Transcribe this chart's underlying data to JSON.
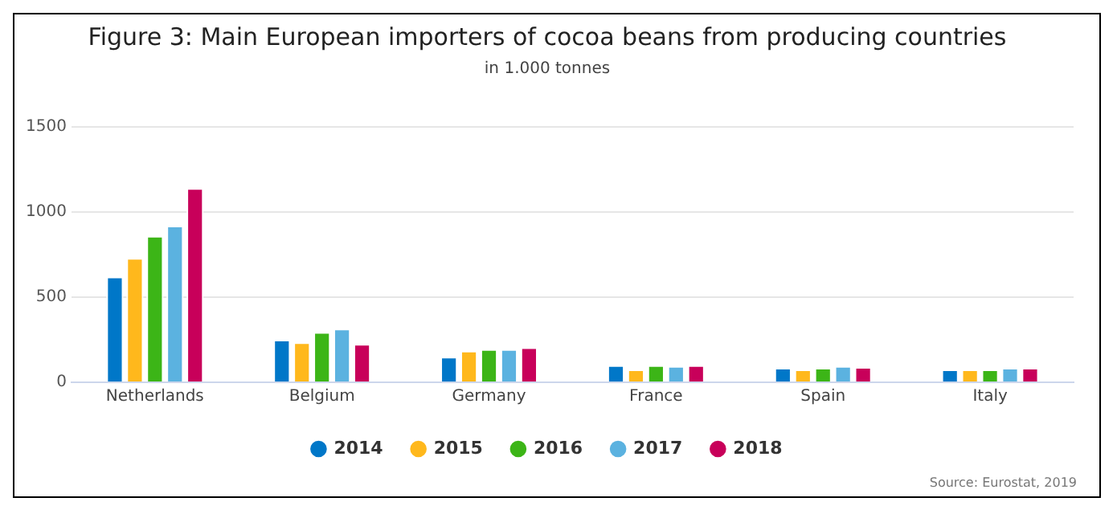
{
  "chart_data": {
    "type": "bar",
    "title": "Figure 3: Main European importers of cocoa beans from producing countries",
    "subtitle": "in 1.000 tonnes",
    "categories": [
      "Netherlands",
      "Belgium",
      "Germany",
      "France",
      "Spain",
      "Italy"
    ],
    "series": [
      {
        "name": "2014",
        "color": "#0077c8",
        "values": [
          620,
          250,
          150,
          100,
          85,
          75
        ]
      },
      {
        "name": "2015",
        "color": "#ffb81c",
        "values": [
          730,
          235,
          185,
          75,
          75,
          75
        ]
      },
      {
        "name": "2016",
        "color": "#3cb517",
        "values": [
          860,
          295,
          195,
          100,
          85,
          75
        ]
      },
      {
        "name": "2017",
        "color": "#5bb2e0",
        "values": [
          920,
          315,
          195,
          95,
          95,
          85
        ]
      },
      {
        "name": "2018",
        "color": "#c8005a",
        "values": [
          1140,
          225,
          205,
          100,
          90,
          85
        ]
      }
    ],
    "ylim": [
      0,
      1500
    ],
    "yticks": [
      0,
      500,
      1000,
      1500
    ],
    "grid": "y",
    "legend": "bottom",
    "annotations": [
      "Source: Eurostat, 2019"
    ]
  }
}
